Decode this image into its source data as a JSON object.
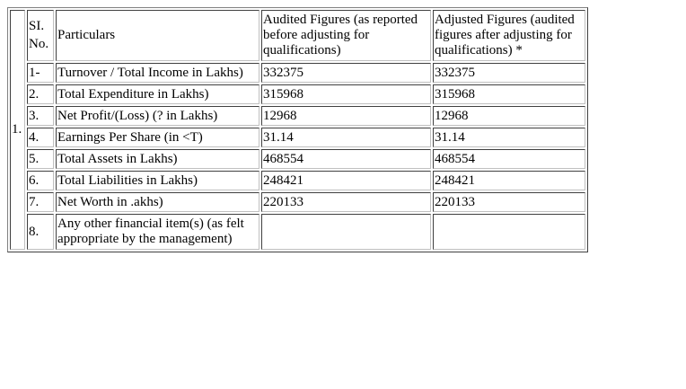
{
  "table": {
    "header": {
      "col0": "1.",
      "sl_line1": "SI.",
      "sl_line2": "No.",
      "particulars": "Particulars",
      "audited_l1": "Audited Figures (as reported",
      "audited_l2": "before adjusting for",
      "audited_l3": "qualifications)",
      "adjusted_l1": "Adjusted Figures (audited",
      "adjusted_l2": "figures after adjusting for",
      "adjusted_l3": "qualifications) *"
    },
    "rows": [
      {
        "no": "1-",
        "particular": "Turnover / Total Income in Lakhs)",
        "audited": "332375",
        "adjusted": "332375"
      },
      {
        "no": "2.",
        "particular": "Total Expenditure in Lakhs)",
        "audited": "315968",
        "adjusted": "315968"
      },
      {
        "no": "3.",
        "particular": "Net Profit/(Loss) (? in Lakhs)",
        "audited": "12968",
        "adjusted": "12968"
      },
      {
        "no": "4.",
        "particular": "Earnings Per Share (in <T)",
        "audited": "31.14",
        "adjusted": "31.14"
      },
      {
        "no": "5.",
        "particular": "Total Assets in Lakhs)",
        "audited": "468554",
        "adjusted": "468554"
      },
      {
        "no": "6.",
        "particular": "Total Liabilities in Lakhs)",
        "audited": "248421",
        "adjusted": "248421"
      },
      {
        "no": "7.",
        "particular": "Net Worth in .akhs)",
        "audited": "220133",
        "adjusted": "220133"
      }
    ],
    "last_row": {
      "no": "8.",
      "particular_l1": "Any other financial item(s) (as felt",
      "particular_l2": "appropriate by the management)",
      "audited": "",
      "adjusted": ""
    }
  }
}
